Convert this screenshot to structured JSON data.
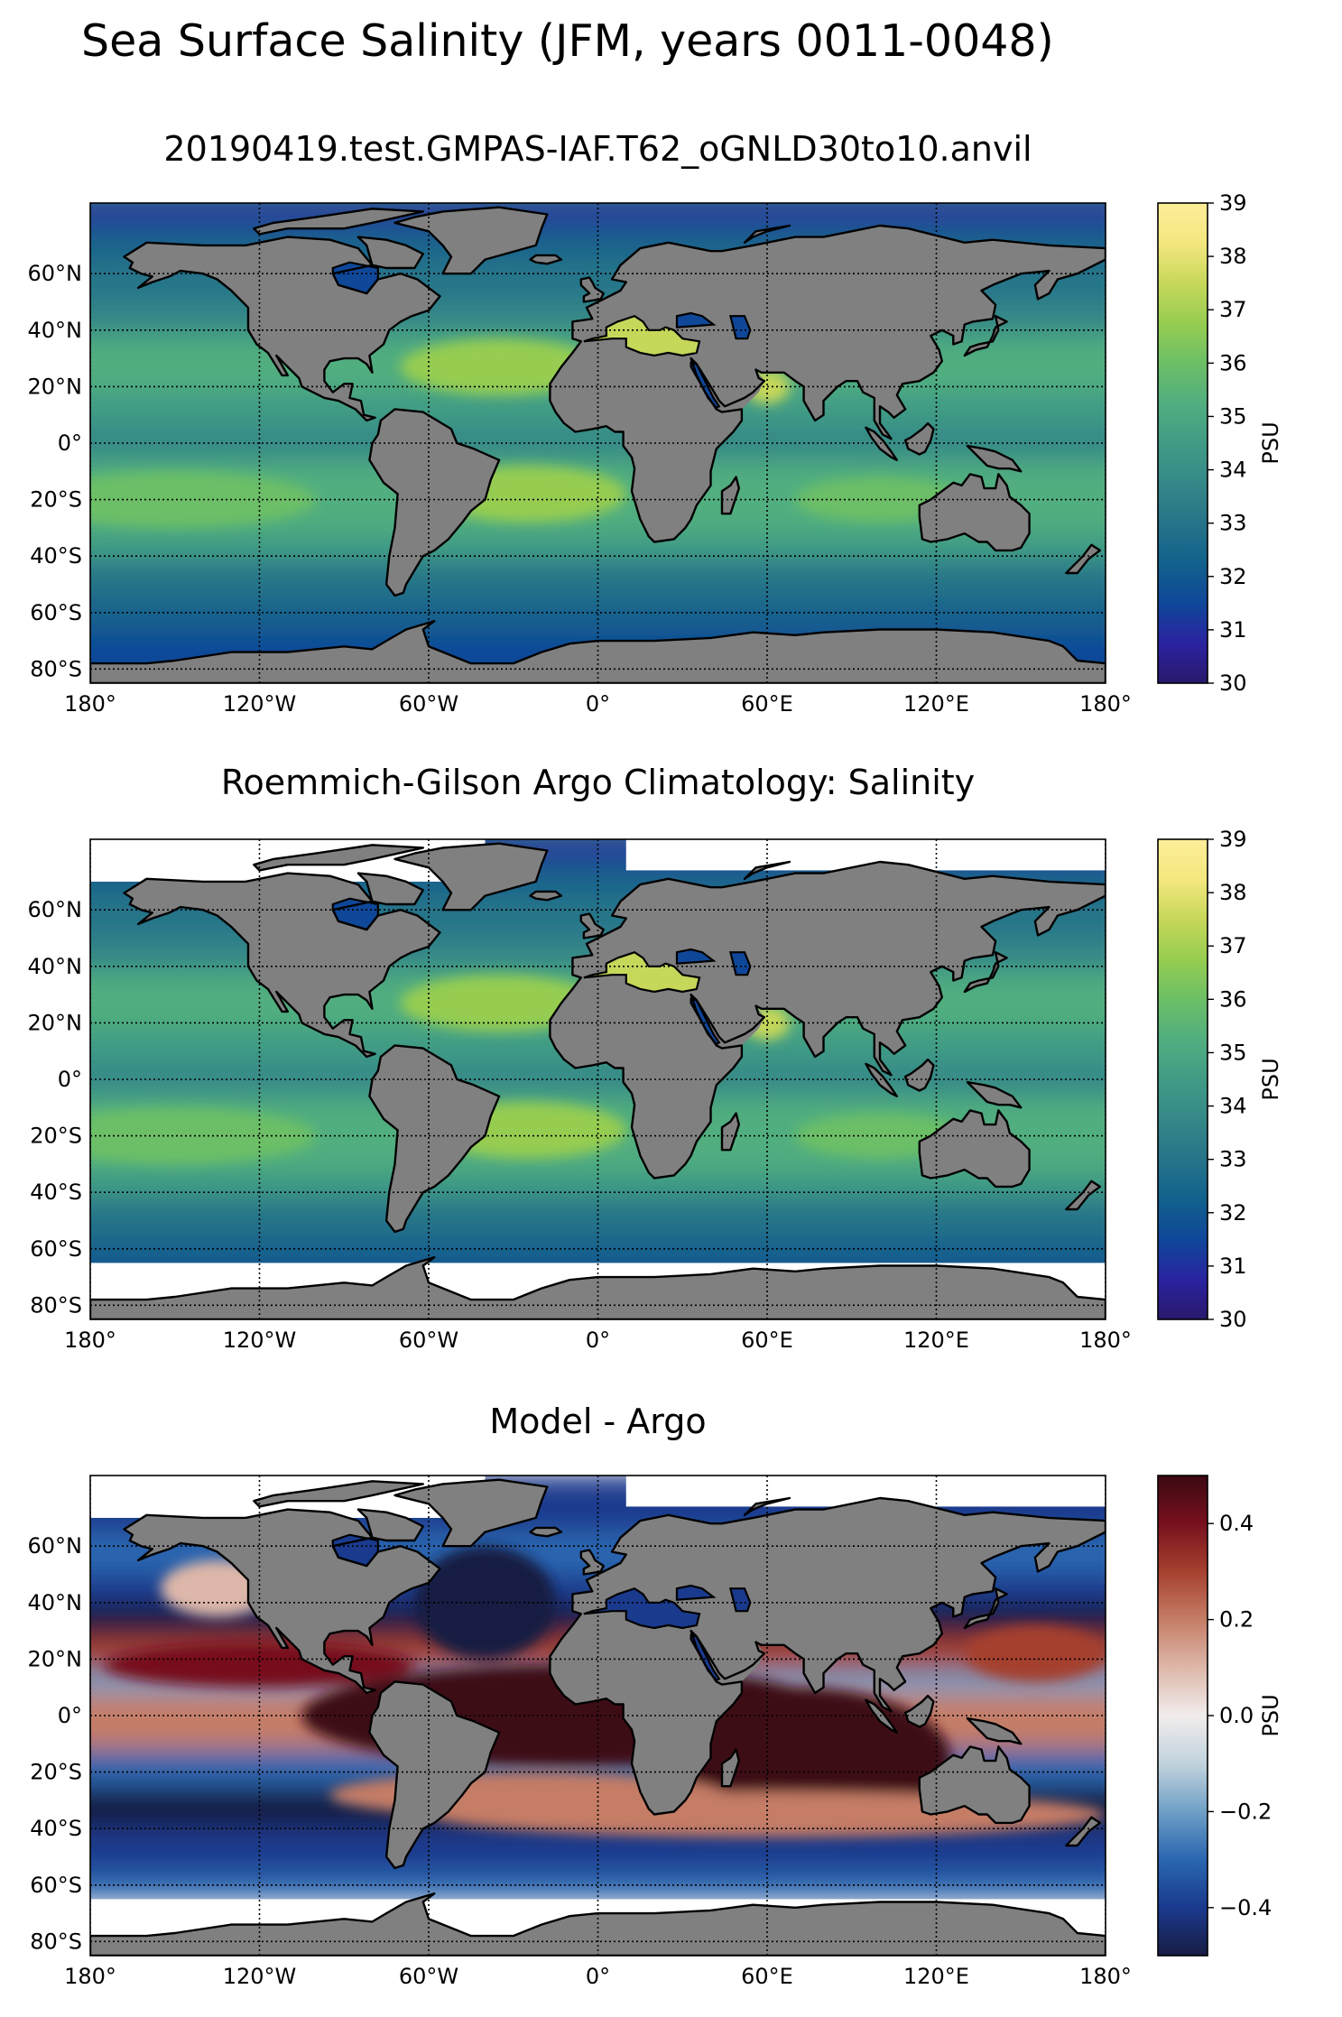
{
  "figure": {
    "suptitle": "Sea Surface Salinity (JFM, years 0011-0048)"
  },
  "chart_data": [
    {
      "type": "heatmap",
      "title": "20190419.test.GMPAS-IAF.T62_oGNLD30to10.anvil",
      "x_ticks": [
        -180,
        -120,
        -60,
        0,
        60,
        120,
        180
      ],
      "x_tick_labels": [
        "180°",
        "120°W",
        "60°W",
        "0°",
        "60°E",
        "120°E",
        "180°"
      ],
      "y_ticks": [
        60,
        40,
        20,
        0,
        -20,
        -40,
        -60,
        -80
      ],
      "y_tick_labels": [
        "60°N",
        "40°N",
        "20°N",
        "0°",
        "20°S",
        "40°S",
        "60°S",
        "80°S"
      ],
      "xlim": [
        -180,
        180
      ],
      "ylim": [
        -85,
        85
      ],
      "grid": true,
      "colormap": "haline",
      "colorbar": {
        "label": "PSU",
        "range": [
          30,
          39
        ],
        "ticks": [
          30,
          31,
          32,
          33,
          34,
          35,
          36,
          37,
          38,
          39
        ],
        "tick_labels": [
          "30",
          "31",
          "32",
          "33",
          "34",
          "35",
          "36",
          "37",
          "38",
          "39"
        ]
      },
      "no_data_mask_south_of": null
    },
    {
      "type": "heatmap",
      "title": "Roemmich-Gilson Argo Climatology: Salinity",
      "x_ticks": [
        -180,
        -120,
        -60,
        0,
        60,
        120,
        180
      ],
      "x_tick_labels": [
        "180°",
        "120°W",
        "60°W",
        "0°",
        "60°E",
        "120°E",
        "180°"
      ],
      "y_ticks": [
        60,
        40,
        20,
        0,
        -20,
        -40,
        -60,
        -80
      ],
      "y_tick_labels": [
        "60°N",
        "40°N",
        "20°N",
        "0°",
        "20°S",
        "40°S",
        "60°S",
        "80°S"
      ],
      "xlim": [
        -180,
        180
      ],
      "ylim": [
        -85,
        85
      ],
      "grid": true,
      "colormap": "haline",
      "colorbar": {
        "label": "PSU",
        "range": [
          30,
          39
        ],
        "ticks": [
          30,
          31,
          32,
          33,
          34,
          35,
          36,
          37,
          38,
          39
        ],
        "tick_labels": [
          "30",
          "31",
          "32",
          "33",
          "34",
          "35",
          "36",
          "37",
          "38",
          "39"
        ]
      },
      "no_data_mask_south_of": -65
    },
    {
      "type": "heatmap",
      "title": "Model - Argo",
      "x_ticks": [
        -180,
        -120,
        -60,
        0,
        60,
        120,
        180
      ],
      "x_tick_labels": [
        "180°",
        "120°W",
        "60°W",
        "0°",
        "60°E",
        "120°E",
        "180°"
      ],
      "y_ticks": [
        60,
        40,
        20,
        0,
        -20,
        -40,
        -60,
        -80
      ],
      "y_tick_labels": [
        "60°N",
        "40°N",
        "20°N",
        "0°",
        "20°S",
        "40°S",
        "60°S",
        "80°S"
      ],
      "xlim": [
        -180,
        180
      ],
      "ylim": [
        -85,
        85
      ],
      "grid": true,
      "colormap": "balance",
      "colorbar": {
        "label": "PSU",
        "range": [
          -0.5,
          0.5
        ],
        "ticks": [
          -0.4,
          -0.2,
          0.0,
          0.2,
          0.4
        ],
        "tick_labels": [
          "−0.4",
          "−0.2",
          "0.0",
          "0.2",
          "0.4"
        ]
      },
      "no_data_mask_south_of": -65
    }
  ],
  "colors": {
    "land": "#808080",
    "no_data": "#ffffff",
    "coastline": "#000000",
    "haline": [
      "#29186b",
      "#2a23a0",
      "#0f4799",
      "#12618d",
      "#267489",
      "#358888",
      "#419b85",
      "#51ae7f",
      "#6cbf66",
      "#96cd51",
      "#c6d75a",
      "#f4e77f",
      "#fdee99"
    ],
    "balance": [
      "#181c43",
      "#1a3a8e",
      "#2a66b0",
      "#6f9fc6",
      "#c1d3dd",
      "#f1ecec",
      "#ddb7a9",
      "#c57d66",
      "#a5412f",
      "#77111e",
      "#3c0912"
    ]
  }
}
